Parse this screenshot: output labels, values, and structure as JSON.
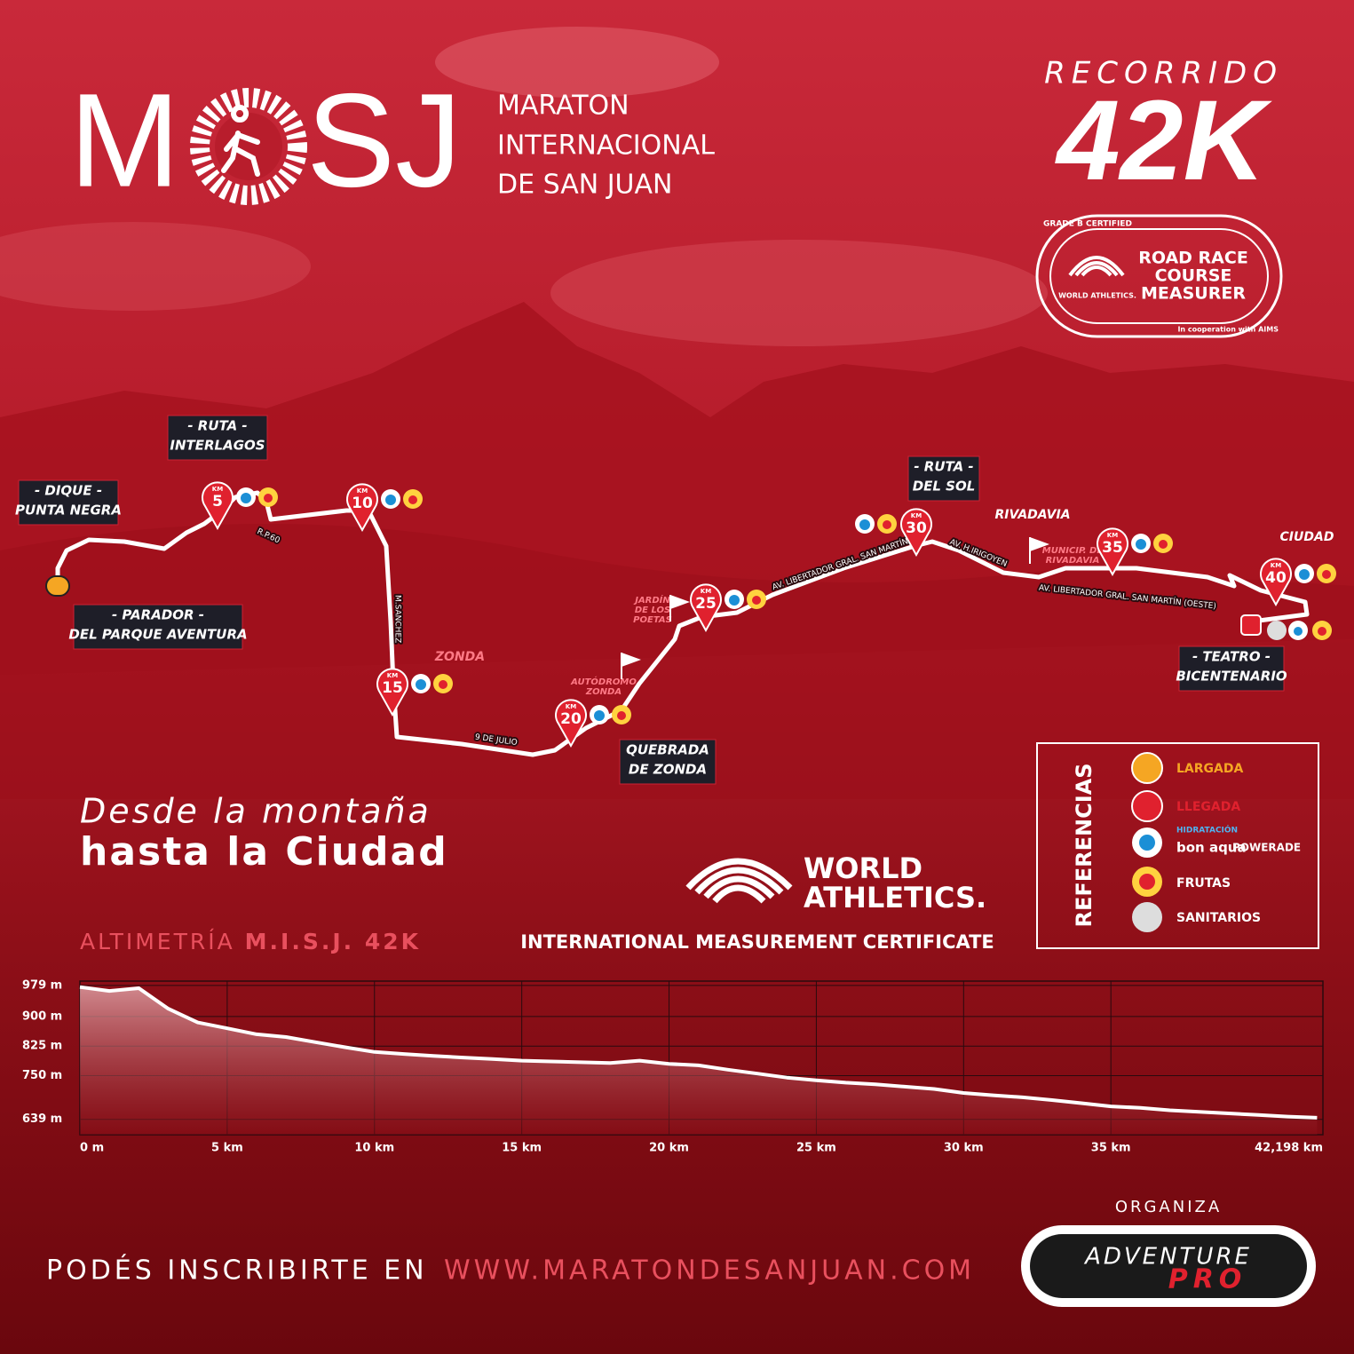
{
  "header": {
    "logo_left": "M",
    "logo_right": "SJ",
    "name_lines": [
      "MARATON",
      "INTERNACIONAL",
      "DE  SAN JUAN"
    ],
    "recorrido": "RECORRIDO",
    "distance": "42K"
  },
  "badge": {
    "grade": "GRADE B CERTIFIED",
    "org": "WORLD ATHLETICS.",
    "title_lines": [
      "ROAD RACE",
      "COURSE",
      "MEASURER"
    ],
    "cooperation": "In cooperation with AIMS"
  },
  "map": {
    "places": [
      {
        "lines": [
          "- DIQUE -",
          "PUNTA NEGRA"
        ]
      },
      {
        "lines": [
          "- RUTA -",
          "INTERLAGOS"
        ]
      },
      {
        "lines": [
          "- PARADOR -",
          "DEL PARQUE AVENTURA"
        ]
      },
      {
        "lines": [
          "- RUTA -",
          "DEL SOL"
        ]
      },
      {
        "lines": [
          "- TEATRO -",
          "BICENTENARIO"
        ]
      },
      {
        "lines": [
          "QUEBRADA",
          "DE  ZONDA"
        ]
      }
    ],
    "notes": [
      {
        "lines": [
          "ZONDA"
        ]
      },
      {
        "lines": [
          "RIVADAVIA"
        ]
      },
      {
        "lines": [
          "CIUDAD"
        ]
      },
      {
        "lines": [
          "AUTÓDROMO",
          "ZONDA"
        ]
      },
      {
        "lines": [
          "JARDÍN",
          "DE LOS",
          "POETAS"
        ]
      },
      {
        "lines": [
          "MUNICIP. DE",
          "RIVADAVIA"
        ]
      }
    ],
    "streets": [
      "R.P.60",
      "M.SANCHEZ",
      "9 DE JULIO",
      "AV. LIBERTADOR GRAL. SAN MARTÍN",
      "AV. H.IRIGOYEN",
      "AV. LIBERTADOR GRAL. SAN MARTÍN (OESTE)"
    ],
    "km_label": "KM",
    "km_markers": [
      5,
      10,
      15,
      20,
      25,
      30,
      35,
      40
    ]
  },
  "tagline": [
    "Desde la montaña",
    "hasta la Ciudad"
  ],
  "certificate": {
    "org_lines": [
      "WORLD",
      "ATHLETICS."
    ],
    "text": "INTERNATIONAL MEASUREMENT CERTIFICATE"
  },
  "legend": {
    "title": "REFERENCIAS",
    "items": [
      "LARGADA",
      "LLEGADA",
      "FRUTAS",
      "SANITARIOS"
    ],
    "hydration": "HIDRATACIÓN",
    "brands": [
      "bon aqua",
      "POWERADE"
    ]
  },
  "elevation": {
    "type": "line",
    "title": "ALTIMETRÍA",
    "title_highlight": "M.I.S.J. 42K",
    "color": "#ffffff",
    "grid": true,
    "x": [
      0,
      1,
      2,
      3,
      4,
      5,
      6,
      7,
      8,
      9,
      10,
      11,
      12,
      13,
      14,
      15,
      16,
      17,
      18,
      19,
      20,
      21,
      22,
      23,
      24,
      25,
      26,
      27,
      28,
      29,
      30,
      31,
      32,
      33,
      34,
      35,
      36,
      37,
      38,
      39,
      40,
      41,
      42
    ],
    "values": [
      975,
      965,
      972,
      920,
      885,
      870,
      855,
      848,
      835,
      822,
      810,
      805,
      800,
      796,
      792,
      788,
      786,
      784,
      782,
      788,
      780,
      776,
      765,
      755,
      745,
      738,
      732,
      728,
      722,
      716,
      706,
      700,
      695,
      688,
      680,
      672,
      668,
      662,
      658,
      654,
      650,
      646,
      643
    ],
    "xlim": [
      0,
      42.198
    ],
    "ylim": [
      600,
      990
    ],
    "xticks": [
      {
        "value": 0,
        "label": "0 m"
      },
      {
        "value": 5,
        "label": "5 km"
      },
      {
        "value": 10,
        "label": "10 km"
      },
      {
        "value": 15,
        "label": "15 km"
      },
      {
        "value": 20,
        "label": "20 km"
      },
      {
        "value": 25,
        "label": "25 km"
      },
      {
        "value": 30,
        "label": "30 km"
      },
      {
        "value": 35,
        "label": "35 km"
      },
      {
        "value": 42.198,
        "label": "42,198  km"
      }
    ],
    "yticks": [
      {
        "value": 639,
        "label": "639 m"
      },
      {
        "value": 750,
        "label": "750 m"
      },
      {
        "value": 825,
        "label": "825 m"
      },
      {
        "value": 900,
        "label": "900 m"
      },
      {
        "value": 979,
        "label": "979 m"
      }
    ]
  },
  "footer": {
    "prompt": "PODÉS INSCRIBIRTE EN",
    "url": "WWW.MARATONDESANJUAN.COM",
    "organiza": "ORGANIZA",
    "org_lines": [
      "ADVENTURE",
      "PRO"
    ]
  }
}
